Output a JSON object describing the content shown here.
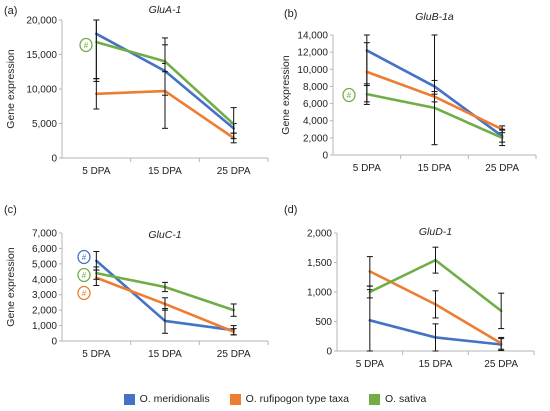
{
  "legend": [
    {
      "name": "O. meridionalis",
      "color": "#4472C4"
    },
    {
      "name": "O. rufipogon type taxa",
      "color": "#ED7D31"
    },
    {
      "name": "O. sativa",
      "color": "#70AD47"
    }
  ],
  "chart_data": [
    {
      "type": "line",
      "panel": "(a)",
      "title": "GluA-1",
      "ylabel": "Gene expression",
      "categories": [
        "5 DPA",
        "15 DPA",
        "25 DPA"
      ],
      "ylim": [
        0,
        20000
      ],
      "yticks": [
        0,
        5000,
        10000,
        15000,
        20000
      ],
      "ytick_labels": [
        "0",
        "5,000",
        "10,000",
        "15,000",
        "20,000"
      ],
      "series": [
        {
          "name": "O. meridionalis",
          "values": [
            18000,
            12600,
            4300
          ],
          "err_low": [
            6500,
            3500,
            700
          ],
          "err_high": [
            2000,
            4800,
            700
          ]
        },
        {
          "name": "O. rufipogon type taxa",
          "values": [
            9300,
            9700,
            2900
          ],
          "err_low": [
            2200,
            5400,
            700
          ],
          "err_high": [
            2200,
            4000,
            700
          ]
        },
        {
          "name": "O. sativa",
          "values": [
            16800,
            14000,
            4900
          ],
          "err_low": [
            5700,
            1500,
            2100
          ],
          "err_high": [
            3200,
            2400,
            2400
          ]
        }
      ],
      "annotations": [
        {
          "text": "#",
          "series": "O. sativa",
          "category": "5 DPA"
        }
      ]
    },
    {
      "type": "line",
      "panel": "(b)",
      "title": "GluB-1a",
      "ylabel": "Gene expression",
      "categories": [
        "5 DPA",
        "15 DPA",
        "25 DPA"
      ],
      "ylim": [
        0,
        14000
      ],
      "yticks": [
        0,
        2000,
        4000,
        6000,
        8000,
        10000,
        12000,
        14000
      ],
      "ytick_labels": [
        "0",
        "2,000",
        "4,000",
        "6,000",
        "8,000",
        "10,000",
        "12,000",
        "14,000"
      ],
      "series": [
        {
          "name": "O. meridionalis",
          "values": [
            12200,
            8000,
            2200
          ],
          "err_low": [
            4100,
            900,
            700
          ],
          "err_high": [
            1800,
            700,
            700
          ]
        },
        {
          "name": "O. rufipogon type taxa",
          "values": [
            9700,
            6800,
            3000
          ],
          "err_low": [
            3500,
            600,
            400
          ],
          "err_high": [
            3400,
            600,
            400
          ]
        },
        {
          "name": "O. sativa",
          "values": [
            7100,
            5500,
            2000
          ],
          "err_low": [
            1200,
            4300,
            900
          ],
          "err_high": [
            1200,
            8500,
            1000
          ]
        }
      ],
      "annotations": [
        {
          "text": "#",
          "series": "O. sativa",
          "category": "5 DPA"
        }
      ]
    },
    {
      "type": "line",
      "panel": "(c)",
      "title": "GluC-1",
      "ylabel": "Gene expression",
      "categories": [
        "5 DPA",
        "15 DPA",
        "25 DPA"
      ],
      "ylim": [
        0,
        7000
      ],
      "yticks": [
        0,
        1000,
        2000,
        3000,
        4000,
        5000,
        6000,
        7000
      ],
      "ytick_labels": [
        "0",
        "1,000",
        "2,000",
        "3,000",
        "4,000",
        "5,000",
        "6,000",
        "7,000"
      ],
      "series": [
        {
          "name": "O. meridionalis",
          "values": [
            5200,
            1300,
            700
          ],
          "err_low": [
            600,
            800,
            300
          ],
          "err_high": [
            600,
            800,
            300
          ]
        },
        {
          "name": "O. rufipogon type taxa",
          "values": [
            4100,
            2400,
            600
          ],
          "err_low": [
            500,
            400,
            200
          ],
          "err_high": [
            500,
            400,
            200
          ]
        },
        {
          "name": "O. sativa",
          "values": [
            4400,
            3500,
            2000
          ],
          "err_low": [
            400,
            300,
            400
          ],
          "err_high": [
            400,
            300,
            400
          ]
        }
      ],
      "annotations": [
        {
          "text": "#",
          "series": "O. meridionalis",
          "category": "5 DPA"
        },
        {
          "text": "#",
          "series": "O. sativa",
          "category": "5 DPA"
        },
        {
          "text": "#",
          "series": "O. rufipogon type taxa",
          "category": "5 DPA"
        }
      ]
    },
    {
      "type": "line",
      "panel": "(d)",
      "title": "GluD-1",
      "ylabel": "",
      "categories": [
        "5 DPA",
        "15 DPA",
        "25 DPA"
      ],
      "ylim": [
        0,
        2000
      ],
      "yticks": [
        0,
        500,
        1000,
        1500,
        2000
      ],
      "ytick_labels": [
        "0",
        "500",
        "1,000",
        "1,500",
        "2,000"
      ],
      "series": [
        {
          "name": "O. meridionalis",
          "values": [
            520,
            230,
            110
          ],
          "err_low": [
            520,
            230,
            100
          ],
          "err_high": [
            520,
            230,
            100
          ]
        },
        {
          "name": "O. rufipogon type taxa",
          "values": [
            1350,
            790,
            130
          ],
          "err_low": [
            250,
            230,
            100
          ],
          "err_high": [
            250,
            230,
            100
          ]
        },
        {
          "name": "O. sativa",
          "values": [
            1000,
            1540,
            680
          ],
          "err_low": [
            100,
            220,
            300
          ],
          "err_high": [
            100,
            220,
            300
          ]
        }
      ],
      "annotations": []
    }
  ]
}
